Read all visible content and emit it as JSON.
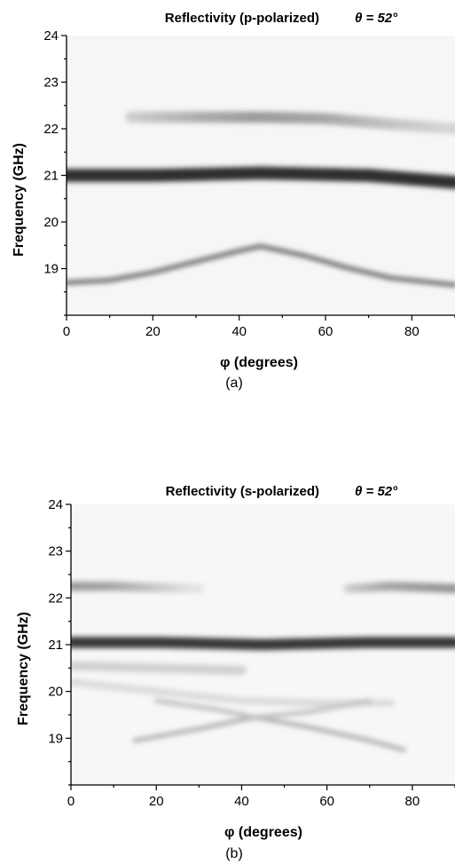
{
  "chart_data": [
    {
      "type": "heatmap",
      "title": "Reflectivity (p-polarized)",
      "title_param": "θ = 52°",
      "xlabel": "φ (degrees)",
      "ylabel": "Frequency (GHz)",
      "panel_label": "(a)",
      "xlim": [
        0,
        90
      ],
      "ylim": [
        18,
        24
      ],
      "xticks": [
        0,
        20,
        40,
        60,
        80
      ],
      "xtick_labels": [
        "0",
        "20",
        "40",
        "60",
        "80"
      ],
      "yticks": [
        19,
        20,
        21,
        22,
        23,
        24
      ],
      "ytick_labels": [
        "19",
        "20",
        "21",
        "22",
        "23",
        "24"
      ],
      "colormap": "grayscale (dark = high reflectivity)",
      "grid": false,
      "bands": [
        {
          "points": [
            [
              0,
              21.0
            ],
            [
              20,
              21.0
            ],
            [
              45,
              21.05
            ],
            [
              70,
              21.0
            ],
            [
              90,
              20.85
            ]
          ],
          "intensity": 0.9,
          "width_ghz": 0.14
        },
        {
          "points": [
            [
              15,
              22.25
            ],
            [
              30,
              22.25
            ],
            [
              45,
              22.25
            ],
            [
              60,
              22.22
            ],
            [
              75,
              22.1
            ],
            [
              90,
              22.0
            ]
          ],
          "intensity": [
            0.15,
            0.3,
            0.4,
            0.35,
            0.22,
            0.12
          ],
          "width_ghz": 0.12
        },
        {
          "points": [
            [
              0,
              18.7
            ],
            [
              10,
              18.75
            ],
            [
              20,
              18.92
            ],
            [
              30,
              19.15
            ],
            [
              40,
              19.38
            ],
            [
              45,
              19.48
            ]
          ],
          "intensity": 0.6,
          "width_ghz": 0.05
        },
        {
          "points": [
            [
              45,
              19.48
            ],
            [
              55,
              19.28
            ],
            [
              65,
              19.02
            ],
            [
              75,
              18.8
            ],
            [
              90,
              18.65
            ]
          ],
          "intensity": 0.6,
          "width_ghz": 0.05
        }
      ]
    },
    {
      "type": "heatmap",
      "title": "Reflectivity (s-polarized)",
      "title_param": "θ = 52°",
      "xlabel": "φ (degrees)",
      "ylabel": "Frequency (GHz)",
      "panel_label": "(b)",
      "xlim": [
        0,
        90
      ],
      "ylim": [
        18,
        24
      ],
      "xticks": [
        0,
        20,
        40,
        60,
        80
      ],
      "xtick_labels": [
        "0",
        "20",
        "40",
        "60",
        "80"
      ],
      "yticks": [
        19,
        20,
        21,
        22,
        23,
        24
      ],
      "ytick_labels": [
        "19",
        "20",
        "21",
        "22",
        "23",
        "24"
      ],
      "colormap": "grayscale (dark = high reflectivity)",
      "grid": false,
      "bands": [
        {
          "points": [
            [
              0,
              21.05
            ],
            [
              20,
              21.05
            ],
            [
              45,
              21.0
            ],
            [
              70,
              21.05
            ],
            [
              90,
              21.05
            ]
          ],
          "intensity": 0.85,
          "width_ghz": 0.12
        },
        {
          "points": [
            [
              0,
              22.25
            ],
            [
              10,
              22.25
            ],
            [
              20,
              22.22
            ],
            [
              30,
              22.2
            ]
          ],
          "intensity": [
            0.4,
            0.35,
            0.2,
            0.05
          ],
          "width_ghz": 0.1
        },
        {
          "points": [
            [
              65,
              22.2
            ],
            [
              75,
              22.25
            ],
            [
              90,
              22.2
            ]
          ],
          "intensity": [
            0.15,
            0.35,
            0.42
          ],
          "width_ghz": 0.1
        },
        {
          "points": [
            [
              0,
              20.55
            ],
            [
              20,
              20.5
            ],
            [
              40,
              20.45
            ]
          ],
          "intensity": 0.15,
          "width_ghz": 0.1
        },
        {
          "points": [
            [
              0,
              20.2
            ],
            [
              20,
              20.0
            ],
            [
              40,
              19.8
            ],
            [
              60,
              19.75
            ],
            [
              75,
              19.75
            ]
          ],
          "intensity": 0.1,
          "width_ghz": 0.08
        },
        {
          "points": [
            [
              15,
              18.95
            ],
            [
              30,
              19.2
            ],
            [
              43,
              19.45
            ],
            [
              55,
              19.25
            ],
            [
              70,
              18.95
            ],
            [
              78,
              18.75
            ]
          ],
          "intensity": 0.28,
          "width_ghz": 0.05
        },
        {
          "points": [
            [
              20,
              19.8
            ],
            [
              35,
              19.6
            ],
            [
              43,
              19.45
            ],
            [
              55,
              19.55
            ],
            [
              70,
              19.8
            ]
          ],
          "intensity": 0.22,
          "width_ghz": 0.05
        }
      ]
    }
  ]
}
